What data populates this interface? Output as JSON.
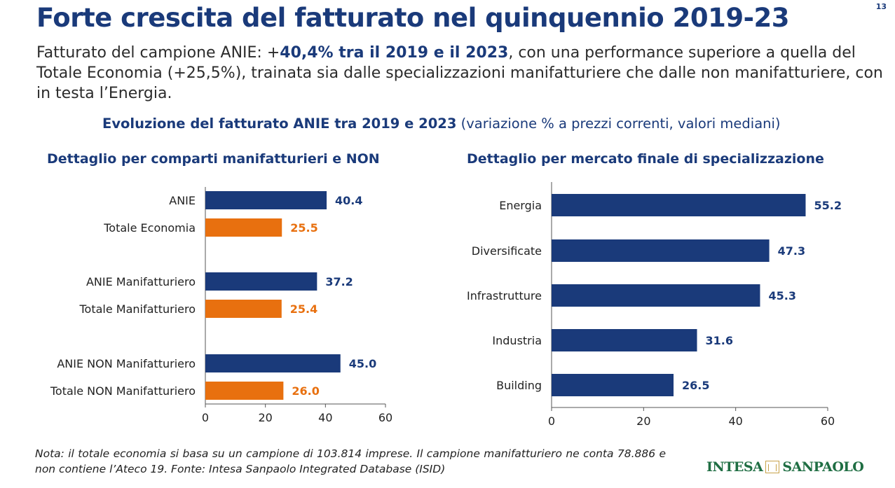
{
  "page_number": "13",
  "title": "Forte crescita del fatturato nel quinquennio 2019-23",
  "intro": {
    "part1": "Fatturato del campione ANIE: +",
    "bold": "40,4% tra il 2019 e il 2023",
    "part2": ", con una performance superiore a quella del Totale Economia (+25,5%), trainata sia dalle specializzazioni manifatturiere che dalle non manifatturiere, con in testa l’Energia."
  },
  "subtitle": {
    "bold": "Evoluzione del fatturato ANIE tra 2019 e 2023",
    "rest": " (variazione % a prezzi correnti, valori mediani)"
  },
  "colors": {
    "anie": "#1a3a7a",
    "totale": "#e8700f"
  },
  "chart_data": [
    {
      "type": "bar",
      "orientation": "horizontal",
      "title": "Dettaglio per comparti manifatturieri e NON",
      "categories": [
        "ANIE",
        "Totale Economia",
        "ANIE Manifatturiero",
        "Totale Manifatturiero",
        "ANIE NON Manifatturiero",
        "Totale NON Manifatturiero"
      ],
      "values": [
        40.4,
        25.5,
        37.2,
        25.4,
        45.0,
        26.0
      ],
      "value_labels": [
        "40.4",
        "25.5",
        "37.2",
        "25.4",
        "45.0",
        "26.0"
      ],
      "bar_colors": [
        "#1a3a7a",
        "#e8700f",
        "#1a3a7a",
        "#e8700f",
        "#1a3a7a",
        "#e8700f"
      ],
      "xlim": [
        0,
        60
      ],
      "xticks": [
        "0",
        "20",
        "40",
        "60"
      ],
      "grid": false
    },
    {
      "type": "bar",
      "orientation": "horizontal",
      "title": "Dettaglio per mercato finale di specializzazione",
      "categories": [
        "Energia",
        "Diversificate",
        "Infrastrutture",
        "Industria",
        "Building"
      ],
      "values": [
        55.2,
        47.3,
        45.3,
        31.6,
        26.5
      ],
      "value_labels": [
        "55.2",
        "47.3",
        "45.3",
        "31.6",
        "26.5"
      ],
      "bar_colors": [
        "#1a3a7a",
        "#1a3a7a",
        "#1a3a7a",
        "#1a3a7a",
        "#1a3a7a"
      ],
      "xlim": [
        0,
        60
      ],
      "xticks": [
        "0",
        "20",
        "40",
        "60"
      ],
      "grid": false
    }
  ],
  "note": "Nota: il totale economia si basa su un campione di 103.814 imprese. Il campione manifatturiero ne conta 78.886 e non contiene l’Ateco 19. Fonte: Intesa Sanpaolo Integrated Database (ISID)",
  "logo": {
    "left": "INTESA",
    "right": "SANPAOLO"
  }
}
